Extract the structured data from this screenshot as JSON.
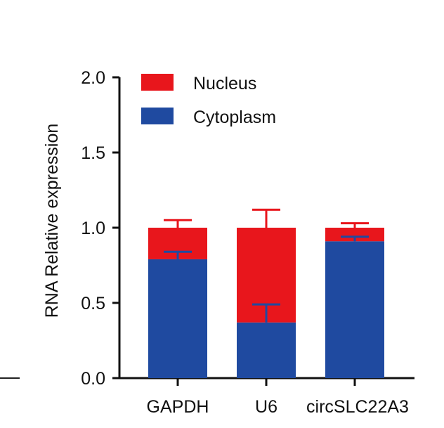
{
  "chart_data": {
    "type": "bar",
    "stacked": true,
    "title": "",
    "xlabel": "",
    "ylabel": "RNA Relative expression",
    "ylim": [
      0,
      2.0
    ],
    "yticks": [
      "0.0",
      "0.5",
      "1.0",
      "1.5",
      "2.0"
    ],
    "ytick_values": [
      0,
      0.5,
      1.0,
      1.5,
      2.0
    ],
    "grid": false,
    "legend_position": "top-left",
    "categories": [
      "GAPDH",
      "U6",
      "circSLC22A3"
    ],
    "series": [
      {
        "name": "Cytoplasm",
        "color": "#1f4aa0",
        "values": [
          0.79,
          0.37,
          0.91
        ],
        "error": [
          0.05,
          0.12,
          0.03
        ]
      },
      {
        "name": "Nucleus",
        "color": "#e8161c",
        "values": [
          0.21,
          0.63,
          0.09
        ],
        "error": [
          0.05,
          0.12,
          0.03
        ]
      }
    ]
  }
}
